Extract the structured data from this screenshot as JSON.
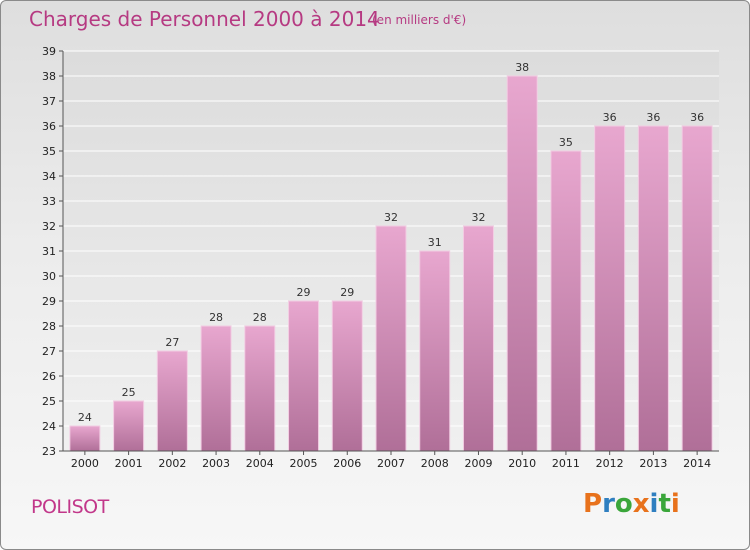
{
  "title": "Charges de Personnel 2000 à 2014",
  "subtitle": "(en milliers d'€)",
  "commune": "POLISOT",
  "logo": "Proxiti",
  "colors": {
    "bar_top": "#e8a7cf",
    "bar_bottom": "#b06f98",
    "title": "#b63a82",
    "logo_letters": [
      "#e8721c",
      "#2f7fc0",
      "#3aa63a",
      "#e8721c",
      "#2f7fc0",
      "#3aa63a",
      "#e8721c"
    ]
  },
  "chart_data": {
    "type": "bar",
    "categories": [
      "2000",
      "2001",
      "2002",
      "2003",
      "2004",
      "2005",
      "2006",
      "2007",
      "2008",
      "2009",
      "2010",
      "2011",
      "2012",
      "2013",
      "2014"
    ],
    "values": [
      24,
      25,
      27,
      28,
      28,
      29,
      29,
      32,
      31,
      32,
      38,
      35,
      36,
      36,
      36
    ],
    "ylim": [
      23,
      39
    ],
    "yticks": [
      "23",
      "24",
      "25",
      "26",
      "27",
      "28",
      "29",
      "30",
      "31",
      "32",
      "33",
      "34",
      "35",
      "36",
      "37",
      "38",
      "39"
    ],
    "grid": true,
    "data_labels": true
  }
}
